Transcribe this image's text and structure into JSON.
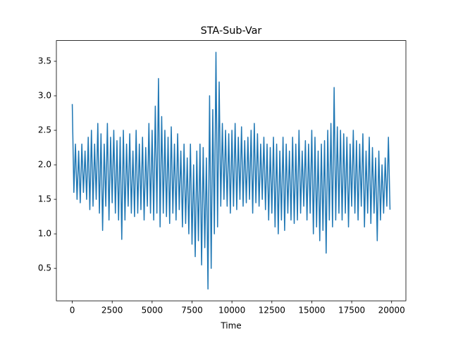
{
  "chart_data": {
    "type": "line",
    "title": "STA-Sub-Var",
    "x_label": "Time",
    "x": [
      0,
      100,
      200,
      300,
      400,
      500,
      600,
      700,
      800,
      900,
      1000,
      1100,
      1200,
      1300,
      1400,
      1500,
      1600,
      1700,
      1800,
      1900,
      2000,
      2100,
      2200,
      2300,
      2400,
      2500,
      2600,
      2700,
      2800,
      2900,
      3000,
      3100,
      3200,
      3300,
      3400,
      3500,
      3600,
      3700,
      3800,
      3900,
      4000,
      4100,
      4200,
      4300,
      4400,
      4500,
      4600,
      4700,
      4800,
      4900,
      5000,
      5100,
      5200,
      5300,
      5400,
      5500,
      5600,
      5700,
      5800,
      5900,
      6000,
      6100,
      6200,
      6300,
      6400,
      6500,
      6600,
      6700,
      6800,
      6900,
      7000,
      7100,
      7200,
      7300,
      7400,
      7500,
      7600,
      7700,
      7800,
      7900,
      8000,
      8100,
      8200,
      8300,
      8400,
      8500,
      8600,
      8700,
      8800,
      8900,
      9000,
      9100,
      9200,
      9300,
      9400,
      9500,
      9600,
      9700,
      9800,
      9900,
      10000,
      10100,
      10200,
      10300,
      10400,
      10500,
      10600,
      10700,
      10800,
      10900,
      11000,
      11100,
      11200,
      11300,
      11400,
      11500,
      11600,
      11700,
      11800,
      11900,
      12000,
      12100,
      12200,
      12300,
      12400,
      12500,
      12600,
      12700,
      12800,
      12900,
      13000,
      13100,
      13200,
      13300,
      13400,
      13500,
      13600,
      13700,
      13800,
      13900,
      14000,
      14100,
      14200,
      14300,
      14400,
      14500,
      14600,
      14700,
      14800,
      14900,
      15000,
      15100,
      15200,
      15300,
      15400,
      15500,
      15600,
      15700,
      15800,
      15900,
      16000,
      16100,
      16200,
      16300,
      16400,
      16500,
      16600,
      16700,
      16800,
      16900,
      17000,
      17100,
      17200,
      17300,
      17400,
      17500,
      17600,
      17700,
      17800,
      17900,
      18000,
      18100,
      18200,
      18300,
      18400,
      18500,
      18600,
      18700,
      18800,
      18900,
      19000,
      19100,
      19200,
      19300,
      19400,
      19500,
      19600,
      19700,
      19800,
      19900
    ],
    "series": [
      {
        "name": "STA-Sub-Var",
        "color": "#1f77b4",
        "values": [
          2.88,
          1.6,
          2.3,
          1.5,
          2.2,
          1.45,
          2.3,
          1.6,
          2.2,
          1.5,
          2.4,
          1.35,
          2.5,
          1.4,
          2.3,
          1.5,
          2.6,
          1.3,
          2.45,
          1.05,
          2.3,
          1.4,
          2.6,
          1.2,
          2.4,
          1.45,
          2.5,
          1.3,
          2.35,
          1.2,
          2.4,
          0.92,
          2.5,
          1.2,
          2.3,
          1.4,
          2.45,
          1.3,
          2.2,
          1.25,
          2.5,
          1.3,
          2.3,
          1.35,
          2.4,
          1.2,
          2.25,
          1.4,
          2.6,
          1.3,
          2.5,
          1.2,
          2.85,
          1.3,
          3.25,
          1.1,
          2.7,
          1.3,
          2.5,
          1.25,
          2.4,
          1.15,
          2.55,
          1.3,
          2.3,
          1.2,
          2.45,
          1.35,
          2.2,
          1.1,
          2.3,
          1.15,
          2.1,
          1.0,
          2.3,
          0.85,
          2.0,
          0.67,
          2.2,
          0.9,
          2.3,
          0.55,
          2.25,
          0.8,
          2.1,
          0.2,
          3.0,
          0.5,
          2.8,
          1.0,
          3.63,
          1.1,
          3.2,
          1.4,
          2.6,
          1.5,
          2.5,
          1.4,
          2.45,
          1.3,
          2.5,
          1.4,
          2.6,
          1.35,
          2.4,
          1.5,
          2.55,
          1.4,
          2.35,
          1.45,
          2.4,
          1.5,
          2.5,
          1.3,
          2.6,
          1.45,
          2.45,
          1.4,
          2.3,
          1.5,
          2.4,
          1.35,
          2.3,
          1.2,
          2.25,
          1.3,
          2.4,
          1.1,
          2.3,
          1.0,
          2.2,
          1.2,
          2.4,
          1.05,
          2.3,
          1.3,
          2.2,
          1.2,
          2.4,
          1.15,
          2.3,
          1.2,
          2.5,
          1.3,
          2.2,
          1.4,
          2.35,
          1.2,
          2.3,
          1.3,
          2.5,
          1.0,
          2.4,
          1.1,
          2.2,
          0.9,
          2.3,
          1.05,
          2.35,
          0.72,
          2.5,
          1.2,
          2.6,
          1.1,
          3.12,
          1.2,
          2.55,
          1.3,
          2.5,
          1.2,
          2.45,
          1.3,
          2.4,
          1.1,
          2.3,
          1.4,
          2.5,
          1.3,
          2.35,
          1.2,
          2.3,
          1.4,
          2.45,
          1.1,
          2.2,
          1.3,
          2.4,
          1.15,
          2.25,
          1.3,
          2.1,
          0.9,
          2.2,
          1.2,
          2.0,
          1.3,
          2.1,
          1.4,
          2.4,
          1.35
        ]
      }
    ],
    "xlim": [
      -995,
      20895
    ],
    "xticks": [
      0,
      2500,
      5000,
      7500,
      10000,
      12500,
      15000,
      17500,
      20000
    ],
    "ylim": [
      0.03,
      3.8
    ],
    "yticks": [
      0.5,
      {
        "value": 1,
        "label": "1.0"
      },
      1.5,
      {
        "value": 2,
        "label": "2.0"
      },
      2.5,
      {
        "value": 3,
        "label": "3.0"
      },
      3.5
    ],
    "grid": false
  }
}
